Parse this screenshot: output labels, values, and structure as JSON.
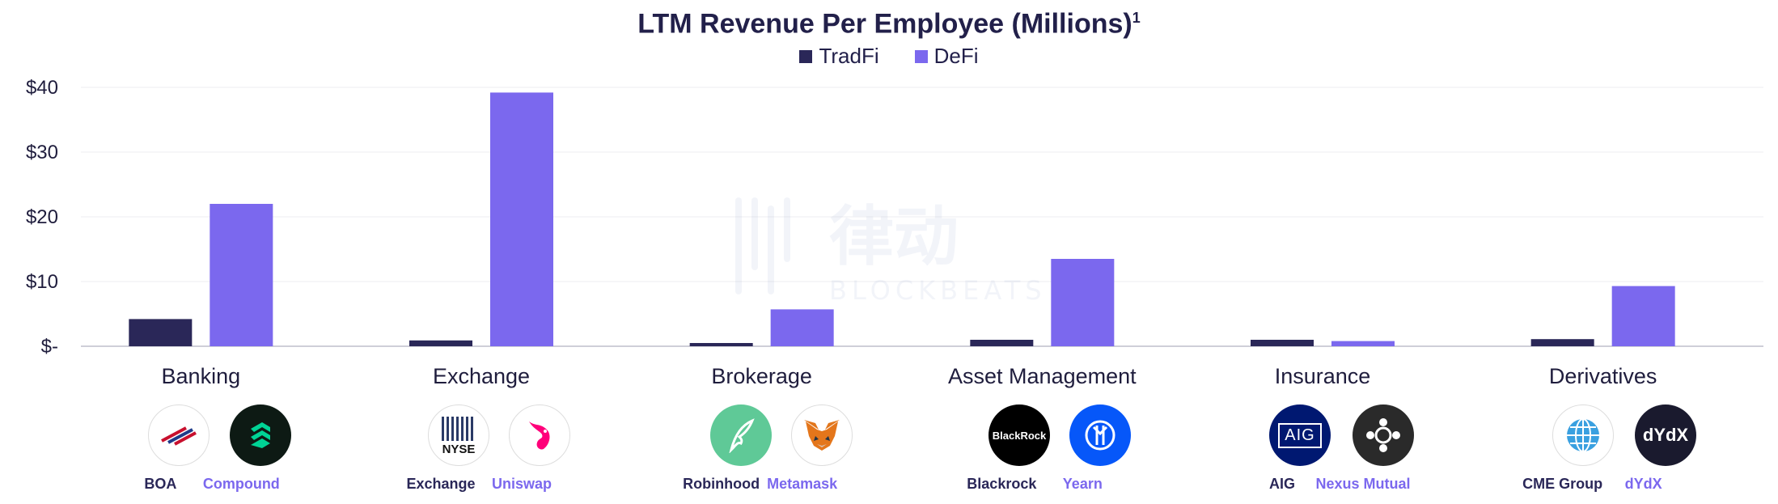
{
  "chart_data": {
    "type": "bar",
    "title": "LTM Revenue Per Employee (Millions)",
    "title_footnote": "1",
    "categories": [
      "Banking",
      "Exchange",
      "Brokerage",
      "Asset Management",
      "Insurance",
      "Derivatives"
    ],
    "series": [
      {
        "name": "TradFi",
        "color": "#2a2758",
        "values": [
          4.2,
          0.9,
          0.5,
          1.0,
          1.0,
          1.1
        ]
      },
      {
        "name": "DeFi",
        "color": "#7b68ee",
        "values": [
          22.0,
          39.2,
          5.7,
          13.5,
          0.8,
          9.3
        ]
      }
    ],
    "ylim": [
      0,
      40
    ],
    "yticks": [
      {
        "value": 40,
        "label": "$40"
      },
      {
        "value": 30,
        "label": "$30"
      },
      {
        "value": 20,
        "label": "$20"
      },
      {
        "value": 10,
        "label": "$10"
      },
      {
        "value": 0,
        "label": "$-"
      }
    ],
    "grid": true,
    "legend_position": "top-center",
    "xlabel": "",
    "ylabel": ""
  },
  "companies": [
    {
      "tradfi": "BOA",
      "defi": "Compound",
      "tradfi_icon": "boa-logo-icon",
      "defi_icon": "compound-logo-icon"
    },
    {
      "tradfi": "Exchange",
      "defi": "Uniswap",
      "tradfi_icon": "nyse-logo-icon",
      "defi_icon": "uniswap-logo-icon"
    },
    {
      "tradfi": "Robinhood",
      "defi": "Metamask",
      "tradfi_icon": "robinhood-logo-icon",
      "defi_icon": "metamask-logo-icon"
    },
    {
      "tradfi": "Blackrock",
      "defi": "Yearn",
      "tradfi_icon": "blackrock-logo-icon",
      "defi_icon": "yearn-logo-icon"
    },
    {
      "tradfi": "AIG",
      "defi": "Nexus Mutual",
      "tradfi_icon": "aig-logo-icon",
      "defi_icon": "nexus-mutual-logo-icon"
    },
    {
      "tradfi": "CME Group",
      "defi": "dYdX",
      "tradfi_icon": "cme-logo-icon",
      "defi_icon": "dydx-logo-icon"
    }
  ],
  "logo_text": {
    "nyse": "NYSE",
    "blackrock": "BlackRock",
    "aig": "AIG",
    "dydx": "dYdX"
  },
  "watermark": {
    "cn": "律动",
    "en": "BLOCKBEATS"
  }
}
